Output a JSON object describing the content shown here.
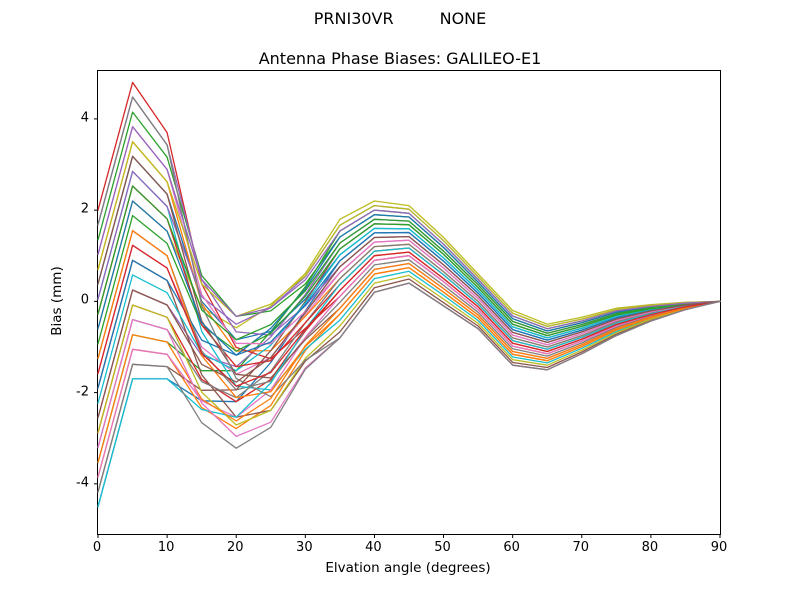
{
  "header": {
    "suptitle_left": "PRNI30VR",
    "suptitle_right": "NONE"
  },
  "chart_data": {
    "type": "line",
    "title": "Antenna Phase Biases: GALILEO-E1",
    "xlabel": "Elvation angle (degrees)",
    "ylabel": "Bias (mm)",
    "xlim": [
      0,
      90
    ],
    "ylim": [
      -5.1,
      5.05
    ],
    "xticks": [
      0,
      10,
      20,
      30,
      40,
      50,
      60,
      70,
      80,
      90
    ],
    "yticks": [
      -4,
      -2,
      0,
      2,
      4
    ],
    "grid": false,
    "legend": "none",
    "line_width": 1.3,
    "palette": [
      "#1f77b4",
      "#ff7f0e",
      "#2ca02c",
      "#d62728",
      "#9467bd",
      "#8c564b",
      "#e377c2",
      "#7f7f7f",
      "#bcbd22",
      "#17becf"
    ],
    "x": [
      0,
      5,
      10,
      15,
      20,
      25,
      30,
      35,
      40,
      45,
      50,
      55,
      60,
      65,
      70,
      75,
      80,
      85,
      90
    ],
    "series": [
      {
        "name": "line-01",
        "values": [
          -4.5,
          -1.7,
          -1.7,
          -2.18,
          -2.2,
          -1.34,
          -0.21,
          0.89,
          1.5,
          1.51,
          0.88,
          0.18,
          -0.62,
          -0.85,
          -0.63,
          -0.36,
          -0.2,
          -0.08,
          0
        ]
      },
      {
        "name": "line-02",
        "values": [
          -3.85,
          -1.05,
          -1.16,
          -2.33,
          -2.79,
          -2.28,
          -1.08,
          -0.28,
          0.6,
          0.74,
          0.2,
          -0.36,
          -1.16,
          -1.3,
          -0.99,
          -0.63,
          -0.36,
          -0.15,
          0
        ]
      },
      {
        "name": "line-03",
        "values": [
          -3.53,
          -0.73,
          -0.89,
          -1.52,
          -1.52,
          -0.66,
          0.32,
          1.54,
          2.0,
          1.93,
          1.25,
          0.48,
          -0.32,
          -0.6,
          -0.43,
          -0.21,
          -0.11,
          -0.04,
          0
        ]
      },
      {
        "name": "line-04",
        "values": [
          -2.88,
          -0.08,
          -0.35,
          -1.71,
          -2.2,
          -1.71,
          -0.65,
          0.24,
          1.0,
          1.08,
          0.5,
          -0.12,
          -0.92,
          -1.1,
          -0.83,
          -0.51,
          -0.29,
          -0.12,
          0
        ]
      },
      {
        "name": "line-05",
        "values": [
          -2.55,
          0.25,
          -0.08,
          -1.19,
          -1.43,
          -0.78,
          0.15,
          1.28,
          1.8,
          1.76,
          1.1,
          0.36,
          -0.44,
          -0.7,
          -0.51,
          -0.27,
          -0.14,
          -0.05,
          0
        ]
      },
      {
        "name": "line-06",
        "values": [
          -1.9,
          0.9,
          0.46,
          -1.61,
          -2.54,
          -2.39,
          -1.31,
          -0.67,
          0.3,
          0.49,
          -0.03,
          -0.54,
          -1.34,
          -1.45,
          -1.11,
          -0.72,
          -0.41,
          -0.17,
          0
        ]
      },
      {
        "name": "line-07",
        "values": [
          -1.58,
          1.23,
          0.73,
          -1.0,
          -1.6,
          -1.23,
          -0.31,
          0.63,
          1.3,
          1.34,
          0.73,
          0.06,
          -0.74,
          -0.95,
          -0.71,
          -0.42,
          -0.23,
          -0.09,
          0
        ]
      },
      {
        "name": "line-08",
        "values": [
          -1.25,
          1.55,
          1.0,
          -1.09,
          -1.94,
          -1.75,
          -0.8,
          -0.02,
          0.8,
          0.91,
          0.35,
          -0.24,
          -1.04,
          -1.2,
          -0.91,
          -0.57,
          -0.32,
          -0.13,
          0
        ]
      },
      {
        "name": "line-09",
        "values": [
          -0.6,
          2.2,
          1.54,
          -0.14,
          -0.58,
          -0.1,
          0.61,
          1.8,
          2.2,
          2.1,
          1.4,
          0.6,
          -0.2,
          -0.5,
          -0.35,
          -0.15,
          -0.07,
          -0.02,
          0
        ]
      },
      {
        "name": "line-10",
        "values": [
          0.05,
          2.85,
          2.08,
          -0.66,
          -1.86,
          -1.94,
          -1.05,
          -0.41,
          0.5,
          0.66,
          0.13,
          -0.42,
          -1.22,
          -1.35,
          -1.03,
          -0.66,
          -0.38,
          -0.16,
          0
        ]
      },
      {
        "name": "line-11",
        "values": [
          0.38,
          3.18,
          2.35,
          0.0,
          -0.84,
          -0.66,
          0.05,
          1.02,
          1.6,
          1.59,
          0.95,
          0.24,
          -0.56,
          -0.8,
          -0.59,
          -0.33,
          -0.18,
          -0.07,
          0
        ]
      },
      {
        "name": "line-12",
        "values": [
          0.7,
          3.5,
          2.62,
          -0.05,
          -1.09,
          -1.08,
          -0.33,
          0.5,
          1.2,
          1.25,
          0.65,
          0.0,
          -0.8,
          -1.0,
          -0.75,
          -0.45,
          -0.25,
          -0.1,
          0
        ]
      },
      {
        "name": "line-13",
        "values": [
          1.35,
          4.15,
          3.16,
          0.57,
          -0.33,
          -0.21,
          0.38,
          1.41,
          1.9,
          1.85,
          1.18,
          0.42,
          -0.38,
          -0.65,
          -0.47,
          -0.24,
          -0.12,
          -0.04,
          0
        ]
      },
      {
        "name": "line-14",
        "values": [
          2.0,
          4.8,
          3.7,
          0.38,
          -1.01,
          -1.26,
          -0.59,
          0.11,
          0.9,
          1.0,
          0.43,
          -0.18,
          -0.98,
          -1.15,
          -0.87,
          -0.54,
          -0.3,
          -0.12,
          0
        ]
      },
      {
        "name": "line-15",
        "values": [
          1.68,
          4.48,
          3.43,
          0.48,
          -0.67,
          -0.74,
          -0.1,
          0.76,
          1.4,
          1.42,
          0.8,
          0.12,
          -0.68,
          -0.9,
          -0.67,
          -0.39,
          -0.21,
          -0.08,
          0
        ]
      },
      {
        "name": "line-16",
        "values": [
          -4.18,
          -1.38,
          -1.43,
          -1.95,
          -1.94,
          -1.08,
          0.0,
          1.15,
          1.7,
          1.68,
          1.03,
          0.3,
          -0.5,
          -0.75,
          -0.55,
          -0.3,
          -0.16,
          -0.06,
          0
        ]
      },
      {
        "name": "line-17",
        "values": [
          -3.85,
          -1.05,
          -1.16,
          -2.18,
          -2.54,
          -1.94,
          -0.79,
          0.11,
          0.9,
          1.0,
          0.43,
          -0.18,
          -0.98,
          -1.15,
          -0.87,
          -0.54,
          -0.3,
          -0.12,
          0
        ]
      },
      {
        "name": "line-18",
        "values": [
          -3.2,
          -0.4,
          -0.62,
          -1.76,
          -2.11,
          -1.53,
          -0.47,
          0.5,
          1.2,
          1.25,
          0.65,
          0.0,
          -0.8,
          -1.0,
          -0.75,
          -0.45,
          -0.25,
          -0.1,
          0
        ]
      },
      {
        "name": "line-19",
        "values": [
          -2.88,
          -0.08,
          -0.35,
          -1.99,
          -2.71,
          -2.39,
          -1.25,
          -0.54,
          0.4,
          0.57,
          0.05,
          -0.48,
          -1.28,
          -1.4,
          -1.07,
          -0.69,
          -0.39,
          -0.16,
          0
        ]
      },
      {
        "name": "line-20",
        "values": [
          -2.23,
          0.58,
          0.19,
          -1.14,
          -1.52,
          -0.96,
          -0.04,
          1.02,
          1.6,
          1.59,
          0.95,
          0.24,
          -0.56,
          -0.8,
          -0.59,
          -0.33,
          -0.18,
          -0.07,
          0
        ]
      },
      {
        "name": "line-21",
        "values": [
          -1.9,
          0.9,
          0.46,
          -0.85,
          -1.18,
          -0.59,
          0.27,
          1.41,
          1.9,
          1.85,
          1.18,
          0.42,
          -0.38,
          -0.65,
          -0.47,
          -0.24,
          -0.12,
          -0.04,
          0
        ]
      },
      {
        "name": "line-22",
        "values": [
          -1.25,
          1.55,
          1.0,
          -1.19,
          -2.11,
          -1.98,
          -0.99,
          -0.28,
          0.6,
          0.74,
          0.2,
          -0.36,
          -1.16,
          -1.3,
          -0.99,
          -0.63,
          -0.36,
          -0.15,
          0
        ]
      },
      {
        "name": "line-23",
        "values": [
          -0.93,
          1.88,
          1.27,
          -0.52,
          -1.09,
          -0.7,
          0.11,
          1.15,
          1.7,
          1.68,
          1.03,
          0.3,
          -0.5,
          -0.75,
          -0.55,
          -0.3,
          -0.16,
          -0.06,
          0
        ]
      },
      {
        "name": "line-24",
        "values": [
          -0.28,
          2.53,
          1.81,
          -0.52,
          -1.43,
          -1.3,
          -0.47,
          0.37,
          1.1,
          1.17,
          0.58,
          -0.06,
          -0.86,
          -1.05,
          -0.79,
          -0.48,
          -0.27,
          -0.11,
          0
        ]
      },
      {
        "name": "line-25",
        "values": [
          0.05,
          2.85,
          2.08,
          0.1,
          -0.5,
          -0.14,
          0.54,
          1.67,
          2.1,
          2.02,
          1.33,
          0.54,
          -0.26,
          -0.55,
          -0.39,
          -0.18,
          -0.09,
          -0.03,
          0
        ]
      },
      {
        "name": "line-26",
        "values": [
          0.38,
          3.18,
          2.35,
          -0.43,
          -1.6,
          -1.68,
          -0.84,
          -0.15,
          0.7,
          0.83,
          0.28,
          -0.3,
          -1.1,
          -1.25,
          -0.95,
          -0.6,
          -0.34,
          -0.14,
          0
        ]
      },
      {
        "name": "line-27",
        "values": [
          1.03,
          3.83,
          2.89,
          0.15,
          -0.92,
          -0.93,
          -0.22,
          0.63,
          1.3,
          1.34,
          0.73,
          0.06,
          -0.74,
          -0.95,
          -0.71,
          -0.42,
          -0.23,
          -0.09,
          0
        ]
      },
      {
        "name": "line-28",
        "values": [
          1.68,
          4.48,
          3.43,
          -0.09,
          -1.69,
          -2.09,
          -1.29,
          -0.8,
          0.2,
          0.4,
          -0.1,
          -0.6,
          -1.4,
          -1.5,
          -1.15,
          -0.75,
          -0.43,
          -0.18,
          0
        ]
      },
      {
        "name": "line-29",
        "values": [
          0.7,
          3.5,
          2.62,
          0.38,
          -0.33,
          -0.06,
          0.56,
          1.67,
          2.1,
          2.02,
          1.33,
          0.54,
          -0.26,
          -0.55,
          -0.39,
          -0.18,
          -0.09,
          -0.03,
          0
        ]
      },
      {
        "name": "line-30",
        "values": [
          -4.5,
          -1.7,
          -1.7,
          -2.37,
          -2.54,
          -1.79,
          -0.61,
          0.37,
          1.1,
          1.17,
          0.58,
          -0.06,
          -0.86,
          -1.05,
          -0.79,
          -0.48,
          -0.27,
          -0.11,
          0
        ]
      },
      {
        "name": "line-31",
        "values": [
          -0.6,
          2.2,
          1.54,
          -0.47,
          -1.18,
          -0.89,
          -0.08,
          0.89,
          1.5,
          1.51,
          0.88,
          0.18,
          -0.62,
          -0.85,
          -0.63,
          -0.36,
          -0.2,
          -0.08,
          0
        ]
      },
      {
        "name": "line-32",
        "values": [
          -3.53,
          -0.73,
          -0.89,
          -2.14,
          -2.62,
          -2.13,
          -0.97,
          -0.15,
          0.7,
          0.83,
          0.28,
          -0.3,
          -1.1,
          -1.25,
          -0.95,
          -0.6,
          -0.34,
          -0.14,
          0
        ]
      },
      {
        "name": "line-33",
        "values": [
          -0.28,
          2.53,
          1.81,
          -0.19,
          -0.84,
          -0.51,
          0.23,
          1.28,
          1.8,
          1.76,
          1.1,
          0.36,
          -0.44,
          -0.7,
          -0.51,
          -0.27,
          -0.14,
          -0.05,
          0
        ]
      },
      {
        "name": "line-34",
        "values": [
          -1.58,
          1.23,
          0.73,
          -1.14,
          -1.86,
          -1.56,
          -0.61,
          0.24,
          1.0,
          1.08,
          0.5,
          -0.12,
          -0.92,
          -1.1,
          -0.83,
          -0.51,
          -0.29,
          -0.12,
          0
        ]
      },
      {
        "name": "line-35",
        "values": [
          1.03,
          3.83,
          2.89,
          0.48,
          -0.33,
          -0.14,
          0.47,
          1.54,
          2.0,
          1.93,
          1.25,
          0.48,
          -0.32,
          -0.6,
          -0.43,
          -0.21,
          -0.11,
          -0.04,
          0
        ]
      },
      {
        "name": "line-36",
        "values": [
          -2.55,
          0.25,
          -0.08,
          -1.38,
          -1.77,
          -1.23,
          -0.25,
          0.76,
          1.4,
          1.42,
          0.8,
          0.12,
          -0.68,
          -0.9,
          -0.67,
          -0.39,
          -0.21,
          -0.08,
          0
        ]
      },
      {
        "name": "line-37",
        "values": [
          -3.2,
          -0.4,
          -0.62,
          -2.23,
          -2.96,
          -2.65,
          -1.46,
          -0.8,
          0.2,
          0.4,
          -0.1,
          -0.6,
          -1.4,
          -1.5,
          -1.15,
          -0.75,
          -0.43,
          -0.18,
          0
        ]
      },
      {
        "name": "line-38",
        "values": [
          -4.18,
          -1.38,
          -1.43,
          -2.66,
          -3.22,
          -2.76,
          -1.49,
          -0.8,
          0.2,
          0.4,
          -0.1,
          -0.6,
          -1.4,
          -1.5,
          -1.15,
          -0.75,
          -0.43,
          -0.18,
          0
        ]
      }
    ]
  }
}
